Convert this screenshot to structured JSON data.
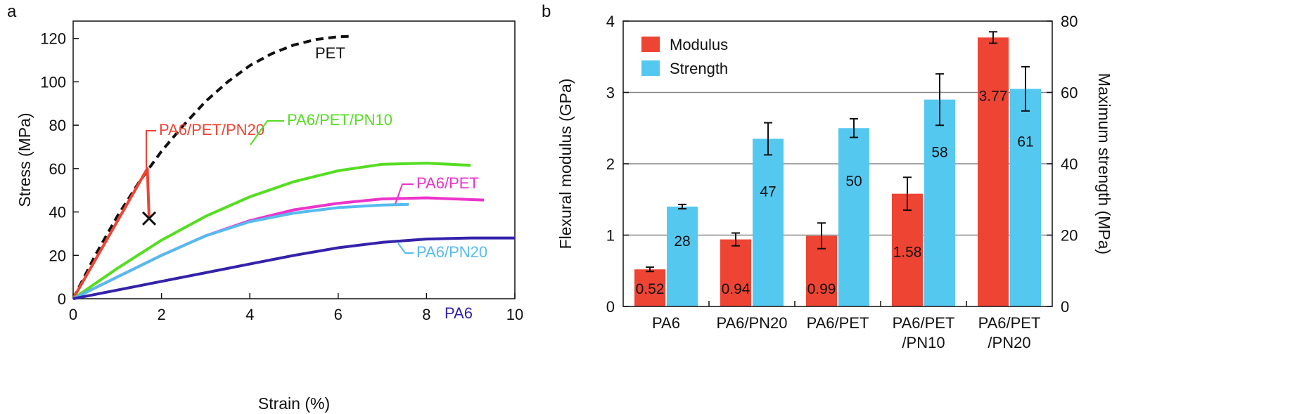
{
  "chart_data": [
    {
      "panel": "a",
      "type": "line",
      "xlabel": "Strain (%)",
      "ylabel": "Stress (MPa)",
      "xlim": [
        0,
        10
      ],
      "ylim": [
        0,
        128
      ],
      "xticks": [
        0,
        2,
        4,
        6,
        8,
        10
      ],
      "yticks": [
        0,
        20,
        40,
        60,
        80,
        100,
        120
      ],
      "grid": false,
      "series": [
        {
          "name": "PET",
          "color": "#111111",
          "dash": true,
          "points": [
            [
              0,
              0
            ],
            [
              0.5,
              20
            ],
            [
              1,
              38
            ],
            [
              1.5,
              54
            ],
            [
              2,
              68
            ],
            [
              2.5,
              80
            ],
            [
              3,
              91
            ],
            [
              3.5,
              100
            ],
            [
              4,
              107.5
            ],
            [
              4.5,
              113
            ],
            [
              5,
              117
            ],
            [
              5.5,
              119.5
            ],
            [
              6,
              120.8
            ],
            [
              6.3,
              121
            ]
          ]
        },
        {
          "name": "PA6/PET/PN20",
          "color": "#ee4433",
          "dash": false,
          "break_marker": true,
          "points": [
            [
              0,
              0
            ],
            [
              1.68,
              60
            ],
            [
              1.72,
              37
            ]
          ]
        },
        {
          "name": "PA6/PET/PN10",
          "color": "#55dd22",
          "dash": false,
          "points": [
            [
              0,
              0
            ],
            [
              1,
              14
            ],
            [
              2,
              27
            ],
            [
              3,
              38
            ],
            [
              4,
              47
            ],
            [
              5,
              54
            ],
            [
              6,
              59
            ],
            [
              7,
              62
            ],
            [
              8,
              62.5
            ],
            [
              9,
              61.5
            ]
          ]
        },
        {
          "name": "PA6/PET",
          "color": "#ee33cc",
          "dash": false,
          "points": [
            [
              0,
              0
            ],
            [
              1,
              10
            ],
            [
              2,
              20
            ],
            [
              3,
              29
            ],
            [
              4,
              36
            ],
            [
              5,
              41
            ],
            [
              6,
              44
            ],
            [
              7,
              46
            ],
            [
              8,
              46.5
            ],
            [
              9.3,
              45.5
            ]
          ]
        },
        {
          "name": "PA6/PN20",
          "color": "#55bbee",
          "dash": false,
          "points": [
            [
              0,
              0
            ],
            [
              1,
              10
            ],
            [
              2,
              20
            ],
            [
              3,
              29
            ],
            [
              4,
              35.5
            ],
            [
              5,
              39.5
            ],
            [
              6,
              42
            ],
            [
              7,
              43.2
            ],
            [
              7.6,
              43.5
            ]
          ]
        },
        {
          "name": "PA6",
          "color": "#3322aa",
          "dash": false,
          "points": [
            [
              0,
              0
            ],
            [
              1,
              4
            ],
            [
              2,
              8
            ],
            [
              3,
              12
            ],
            [
              4,
              16
            ],
            [
              5,
              20
            ],
            [
              6,
              23.5
            ],
            [
              7,
              26
            ],
            [
              8,
              27.5
            ],
            [
              9,
              28
            ],
            [
              10,
              28
            ]
          ]
        }
      ],
      "annotations": [
        {
          "text": "PET",
          "color": "#111111"
        },
        {
          "text": "PA6/PET/PN20",
          "color": "#ee4433"
        },
        {
          "text": "PA6/PET/PN10",
          "color": "#55dd22"
        },
        {
          "text": "PA6/PET",
          "color": "#ee33cc"
        },
        {
          "text": "PA6/PN20",
          "color": "#55bbee"
        },
        {
          "text": "PA6",
          "color": "#3322aa"
        }
      ]
    },
    {
      "panel": "b",
      "type": "bar",
      "categories": [
        [
          "PA6"
        ],
        [
          "PA6/PN20"
        ],
        [
          "PA6/PET"
        ],
        [
          "PA6/PET",
          "/PN10"
        ],
        [
          "PA6/PET",
          "/PN20"
        ]
      ],
      "ylabel": "Flexural modulus (GPa)",
      "y2label": "Maximum strength (MPa)",
      "ylim": [
        0,
        4
      ],
      "y2lim": [
        0,
        80
      ],
      "yticks": [
        0,
        1,
        2,
        3,
        4
      ],
      "y2ticks": [
        0,
        20,
        40,
        60,
        80
      ],
      "grid": true,
      "legend_position": "top-left",
      "series": [
        {
          "name": "Modulus",
          "color": "#ee4433",
          "axis": "left",
          "values": [
            0.52,
            0.94,
            0.99,
            1.58,
            3.77
          ],
          "labels": [
            "0.52",
            "0.94",
            "0.99",
            "1.58",
            "3.77"
          ],
          "errors": [
            0.03,
            0.09,
            0.18,
            0.23,
            0.08
          ]
        },
        {
          "name": "Strength",
          "color": "#55c8f0",
          "axis": "right",
          "values": [
            28,
            47,
            50,
            58,
            61
          ],
          "labels": [
            "28",
            "47",
            "50",
            "58",
            "61"
          ],
          "errors": [
            0.6,
            4.5,
            2.6,
            7.2,
            6.2
          ]
        }
      ]
    }
  ],
  "panel_labels": [
    "a",
    "b"
  ]
}
